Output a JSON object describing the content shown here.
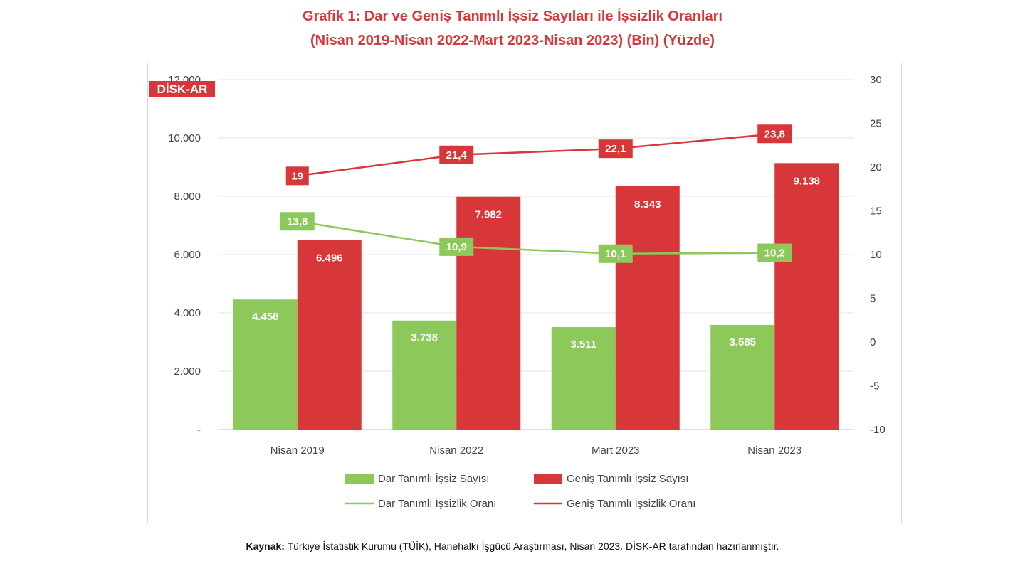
{
  "title_line1": "Grafik 1: Dar ve Geniş Tanımlı İşsiz Sayıları ile İşsizlik Oranları",
  "title_line2": "(Nisan 2019-Nisan 2022-Mart 2023-Nisan 2023) (Bin) (Yüzde)",
  "logo_text": "DİSK-AR",
  "source_label": "Kaynak:",
  "source_text": " Türkiye İstatistik Kurumu (TÜİK), Hanehalkı İşgücü Araştırması, Nisan 2023. DİSK-AR tarafından hazırlanmıştır.",
  "colors": {
    "green": "#8dc95a",
    "red": "#d8373a",
    "title": "#d8373a"
  },
  "chart_data": {
    "type": "bar",
    "categories": [
      "Nisan 2019",
      "Nisan 2022",
      "Mart 2023",
      "Nisan 2023"
    ],
    "series": [
      {
        "name": "Dar Tanımlı İşsiz Sayısı",
        "kind": "bar",
        "axis": "left",
        "color": "#8dc95a",
        "values": [
          4458,
          3738,
          3511,
          3585
        ],
        "labels": [
          "4.458",
          "3.738",
          "3.511",
          "3.585"
        ]
      },
      {
        "name": "Geniş Tanımlı İşsiz Sayısı",
        "kind": "bar",
        "axis": "left",
        "color": "#d8373a",
        "values": [
          6496,
          7982,
          8343,
          9138
        ],
        "labels": [
          "6.496",
          "7.982",
          "8.343",
          "9.138"
        ]
      },
      {
        "name": "Dar Tanımlı İşsizlik Oranı",
        "kind": "line",
        "axis": "right",
        "color": "#8dc95a",
        "values": [
          13.8,
          10.9,
          10.1,
          10.2
        ],
        "labels": [
          "13,8",
          "10,9",
          "10,1",
          "10,2"
        ]
      },
      {
        "name": "Geniş Tanımlı İşsizlik Oranı",
        "kind": "line",
        "axis": "right",
        "color": "#d8373a",
        "values": [
          19,
          21.4,
          22.1,
          23.8
        ],
        "labels": [
          "19",
          "21,4",
          "22,1",
          "23,8"
        ]
      }
    ],
    "ylim_left": [
      0,
      12000
    ],
    "yticks_left": [
      "-",
      "2.000",
      "4.000",
      "6.000",
      "8.000",
      "10.000",
      "12.000"
    ],
    "ylim_right": [
      -10,
      30
    ],
    "yticks_right": [
      "-10",
      "-5",
      "0",
      "5",
      "10",
      "15",
      "20",
      "25",
      "30"
    ],
    "grid": true,
    "legend_position": "bottom"
  }
}
